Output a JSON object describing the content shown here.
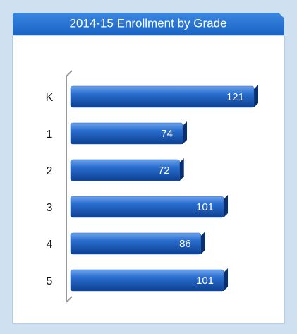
{
  "chart_data": {
    "type": "bar",
    "orientation": "horizontal",
    "title": "2014-15 Enrollment by Grade",
    "categories": [
      "K",
      "1",
      "2",
      "3",
      "4",
      "5"
    ],
    "values": [
      121,
      74,
      72,
      101,
      86,
      101
    ],
    "color": "#1f5fbf"
  }
}
